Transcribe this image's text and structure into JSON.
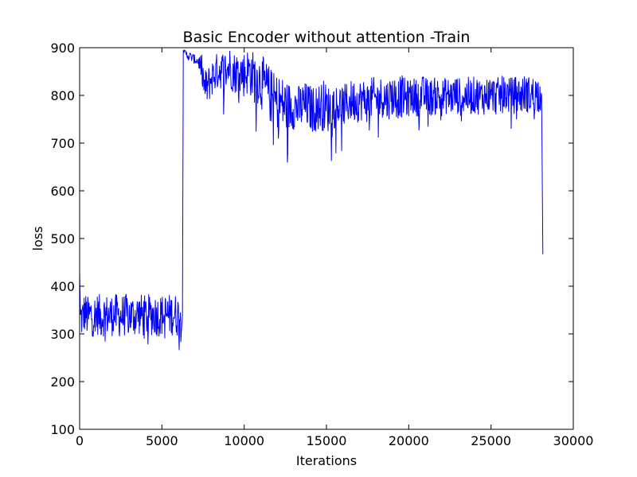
{
  "chart_data": {
    "type": "line",
    "title": "Basic Encoder without attention -Train",
    "xlabel": "Iterations",
    "ylabel": "loss",
    "xlim": [
      0,
      30000
    ],
    "ylim": [
      100,
      900
    ],
    "xticks": [
      0,
      5000,
      10000,
      15000,
      20000,
      25000,
      30000
    ],
    "yticks": [
      100,
      200,
      300,
      400,
      500,
      600,
      700,
      800,
      900
    ],
    "grid": false,
    "line_color": "#0000ff",
    "series": [
      {
        "x": [
          0,
          50,
          150,
          300,
          500,
          700,
          900,
          1100,
          1300,
          1500,
          1800,
          2100,
          2400,
          2700,
          3000,
          3300,
          3600,
          3900,
          4200,
          4500,
          4800,
          5100,
          5400,
          5700,
          6000,
          6200,
          6250,
          6300,
          6500,
          6800,
          7000,
          7200,
          7400,
          7600,
          7800,
          8000,
          8200,
          8500,
          8800,
          9100,
          9400,
          9700,
          10000,
          10300,
          10600,
          10900,
          11200,
          11500,
          11800,
          12100,
          12400,
          12700,
          13000,
          13300,
          13600,
          13900,
          14200,
          14500,
          14800,
          15100,
          15400,
          15700,
          16000,
          16300,
          16600,
          16900,
          17200,
          17500,
          17800,
          18100,
          18400,
          18700,
          19000,
          19300,
          19600,
          19900,
          20200,
          20500,
          20800,
          21100,
          21400,
          21700,
          22000,
          22300,
          22600,
          22900,
          23200,
          23500,
          23800,
          24100,
          24400,
          24700,
          25000,
          25300,
          25600,
          25900,
          26200,
          26500,
          26800,
          27100,
          27400,
          27700,
          28000,
          28100,
          28150
        ],
        "y": [
          430,
          340,
          330,
          345,
          335,
          340,
          338,
          342,
          336,
          340,
          338,
          341,
          337,
          339,
          340,
          338,
          342,
          337,
          339,
          341,
          338,
          340,
          339,
          342,
          338,
          340,
          340,
          895,
          885,
          880,
          875,
          872,
          860,
          815,
          820,
          835,
          845,
          855,
          850,
          860,
          848,
          850,
          845,
          852,
          838,
          835,
          820,
          805,
          790,
          785,
          780,
          775,
          778,
          772,
          780,
          776,
          770,
          775,
          780,
          772,
          778,
          782,
          776,
          785,
          790,
          788,
          792,
          786,
          795,
          790,
          798,
          792,
          800,
          795,
          798,
          792,
          800,
          795,
          802,
          798,
          796,
          800,
          795,
          800,
          797,
          802,
          795,
          800,
          798,
          802,
          796,
          800,
          803,
          798,
          800,
          805,
          798,
          802,
          800,
          805,
          800,
          803,
          805,
          808,
          467
        ],
        "noise": [
          0,
          40,
          45,
          45,
          45,
          45,
          45,
          45,
          45,
          45,
          45,
          45,
          45,
          45,
          45,
          45,
          45,
          45,
          45,
          45,
          45,
          45,
          45,
          45,
          45,
          40,
          0,
          0,
          10,
          10,
          10,
          12,
          30,
          40,
          40,
          40,
          40,
          40,
          45,
          45,
          45,
          45,
          50,
          50,
          55,
          55,
          60,
          60,
          60,
          60,
          60,
          55,
          50,
          50,
          50,
          50,
          50,
          50,
          55,
          50,
          50,
          45,
          45,
          45,
          45,
          45,
          45,
          45,
          45,
          45,
          45,
          45,
          45,
          45,
          45,
          40,
          40,
          40,
          40,
          40,
          40,
          40,
          40,
          40,
          40,
          40,
          40,
          40,
          40,
          40,
          40,
          40,
          40,
          40,
          40,
          40,
          40,
          40,
          40,
          40,
          40,
          40,
          40,
          0,
          0
        ]
      }
    ]
  }
}
